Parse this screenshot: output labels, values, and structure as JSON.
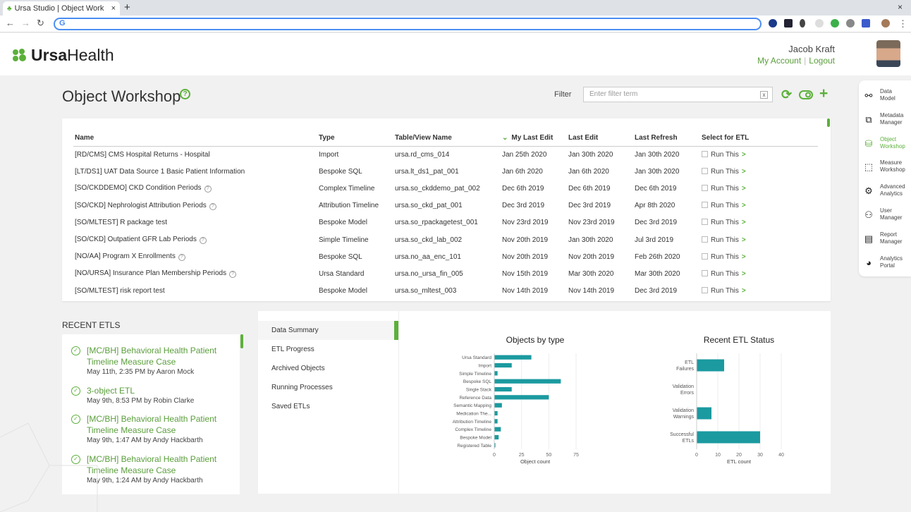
{
  "browser": {
    "tab_title": "Ursa Studio | Object Work",
    "tab_close": "×",
    "new_tab": "+",
    "window_close": "×",
    "omnibox_icon": "G"
  },
  "header": {
    "logo_bold": "Ursa",
    "logo_light": "Health",
    "user_name": "Jacob Kraft",
    "my_account": "My Account",
    "logout": "Logout"
  },
  "page": {
    "title": "Object Workshop",
    "filter_label": "Filter",
    "filter_placeholder": "Enter filter term"
  },
  "table": {
    "headers": [
      "Name",
      "Type",
      "Table/View Name",
      "My Last Edit",
      "Last Edit",
      "Last Refresh",
      "Select for ETL"
    ],
    "run_label": "Run This",
    "rows": [
      {
        "name": "[RD/CMS] CMS Hospital Returns - Hospital",
        "help": false,
        "type": "Import",
        "table": "ursa.rd_cms_014",
        "my_edit": "Jan 25th 2020",
        "last_edit": "Jan 30th 2020",
        "refresh": "Jan 30th 2020"
      },
      {
        "name": "[LT/DS1] UAT Data Source 1 Basic Patient Information",
        "help": false,
        "type": "Bespoke SQL",
        "table": "ursa.lt_ds1_pat_001",
        "my_edit": "Jan 6th 2020",
        "last_edit": "Jan 6th 2020",
        "refresh": "Jan 30th 2020"
      },
      {
        "name": "[SO/CKDDEMO] CKD Condition Periods",
        "help": true,
        "type": "Complex Timeline",
        "table": "ursa.so_ckddemo_pat_002",
        "my_edit": "Dec 6th 2019",
        "last_edit": "Dec 6th 2019",
        "refresh": "Dec 6th 2019"
      },
      {
        "name": "[SO/CKD] Nephrologist Attribution Periods",
        "help": true,
        "type": "Attribution Timeline",
        "table": "ursa.so_ckd_pat_001",
        "my_edit": "Dec 3rd 2019",
        "last_edit": "Dec 3rd 2019",
        "refresh": "Apr 8th 2020"
      },
      {
        "name": "[SO/MLTEST] R package test",
        "help": false,
        "type": "Bespoke Model",
        "table": "ursa.so_rpackagetest_001",
        "my_edit": "Nov 23rd 2019",
        "last_edit": "Nov 23rd 2019",
        "refresh": "Dec 3rd 2019"
      },
      {
        "name": "[SO/CKD] Outpatient GFR Lab Periods",
        "help": true,
        "type": "Simple Timeline",
        "table": "ursa.so_ckd_lab_002",
        "my_edit": "Nov 20th 2019",
        "last_edit": "Jan 30th 2020",
        "refresh": "Jul 3rd 2019"
      },
      {
        "name": "[NO/AA] Program X Enrollments",
        "help": true,
        "type": "Bespoke SQL",
        "table": "ursa.no_aa_enc_101",
        "my_edit": "Nov 20th 2019",
        "last_edit": "Nov 20th 2019",
        "refresh": "Feb 26th 2020"
      },
      {
        "name": "[NO/URSA] Insurance Plan Membership Periods",
        "help": true,
        "type": "Ursa Standard",
        "table": "ursa.no_ursa_fin_005",
        "my_edit": "Nov 15th 2019",
        "last_edit": "Mar 30th 2020",
        "refresh": "Mar 30th 2020"
      },
      {
        "name": "[SO/MLTEST] risk report test",
        "help": false,
        "type": "Bespoke Model",
        "table": "ursa.so_mltest_003",
        "my_edit": "Nov 14th 2019",
        "last_edit": "Nov 14th 2019",
        "refresh": "Dec 3rd 2019"
      }
    ]
  },
  "recent": {
    "title": "RECENT ETLS",
    "items": [
      {
        "name": "[MC/BH] Behavioral Health Patient Timeline Measure Case",
        "by": "May 11th, 2:35 PM by Aaron Mock"
      },
      {
        "name": "3-object ETL",
        "by": "May 9th, 8:53 PM by Robin Clarke"
      },
      {
        "name": "[MC/BH] Behavioral Health Patient Timeline Measure Case",
        "by": "May 9th, 1:47 AM by Andy Hackbarth"
      },
      {
        "name": "[MC/BH] Behavioral Health Patient Timeline Measure Case",
        "by": "May 9th, 1:24 AM by Andy Hackbarth"
      }
    ]
  },
  "summary_menu": [
    "Data Summary",
    "ETL Progress",
    "Archived Objects",
    "Running Processes",
    "Saved ETLs"
  ],
  "sidebar": [
    {
      "label": "Data\nModel",
      "icon": "share-icon"
    },
    {
      "label": "Metadata\nManager",
      "icon": "edit-box-icon"
    },
    {
      "label": "Object\nWorkshop",
      "icon": "object-workshop-icon"
    },
    {
      "label": "Measure\nWorkshop",
      "icon": "chart-line-icon"
    },
    {
      "label": "Advanced\nAnalytics",
      "icon": "analytics-gear-icon"
    },
    {
      "label": "User\nManager",
      "icon": "user-gear-icon"
    },
    {
      "label": "Report\nManager",
      "icon": "report-icon"
    },
    {
      "label": "Analytics\nPortal",
      "icon": "pie-icon"
    }
  ],
  "colors": {
    "accent": "#5cb03a",
    "bar": "#1b9aa0"
  },
  "chart_data": [
    {
      "type": "bar",
      "orientation": "horizontal",
      "title": "Objects by type",
      "xlabel": "Object count",
      "categories": [
        "Ursa Standard",
        "Import",
        "Simple Timeline",
        "Bespoke SQL",
        "Single Stack",
        "Reference Data",
        "Semantic Mapping",
        "Medication The...",
        "Attribution Timeline",
        "Complex Timeline",
        "Bespoke Model",
        "Registered Table"
      ],
      "values": [
        34,
        16,
        3,
        61,
        16,
        50,
        7,
        3,
        3,
        6,
        4,
        1
      ],
      "xticks": [
        0,
        25,
        50,
        75
      ],
      "xlim": [
        0,
        75
      ]
    },
    {
      "type": "bar",
      "orientation": "horizontal",
      "title": "Recent ETL Status",
      "xlabel": "ETL count",
      "categories": [
        "ETL Failures",
        "Validation Errors",
        "Validation Warnings",
        "Successful ETLs"
      ],
      "values": [
        13,
        0,
        7,
        30
      ],
      "xticks": [
        0,
        10,
        20,
        30,
        40
      ],
      "xlim": [
        0,
        40
      ]
    }
  ]
}
